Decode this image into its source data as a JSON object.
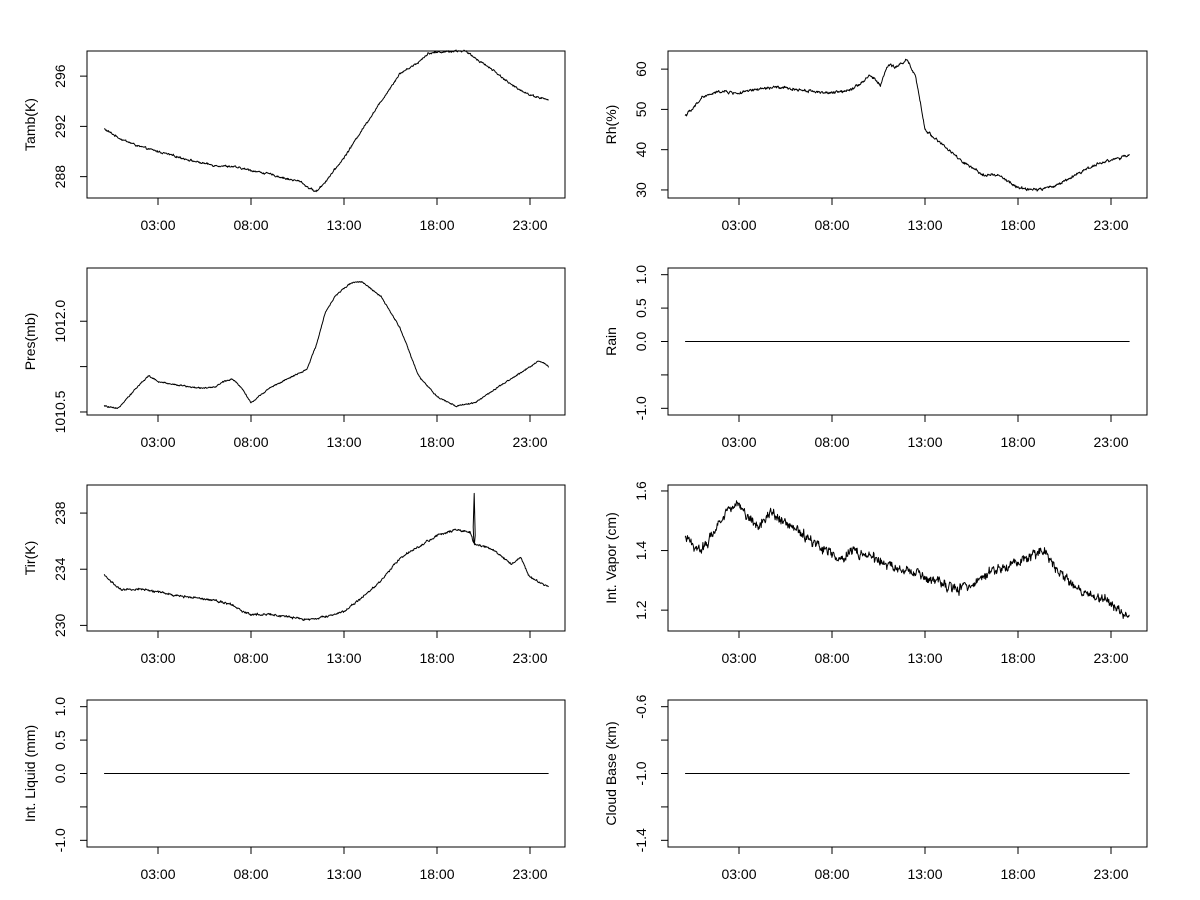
{
  "x_tick_labels": [
    "03:00",
    "08:00",
    "13:00",
    "18:00",
    "23:00"
  ],
  "chart_data": [
    {
      "type": "line",
      "ylabel": "Tamb(K)",
      "ylim": [
        286.3,
        298.0
      ],
      "yticks": [
        288,
        292,
        296
      ],
      "ytick_labels": [
        "288",
        "292",
        "296"
      ],
      "x_hours": [
        0.1,
        1,
        2,
        3,
        4,
        5,
        6,
        7,
        8,
        9,
        10,
        10.7,
        11,
        11.5,
        12,
        13,
        14,
        15,
        16,
        17,
        17.5,
        18,
        19,
        19.5,
        20,
        21,
        22,
        23,
        24
      ],
      "y": [
        291.8,
        291.0,
        290.4,
        290.0,
        289.6,
        289.2,
        288.9,
        288.8,
        288.5,
        288.2,
        287.8,
        287.6,
        287.2,
        286.8,
        287.6,
        289.5,
        291.8,
        294.0,
        296.2,
        297.1,
        297.8,
        297.9,
        298.0,
        298.0,
        297.5,
        296.5,
        295.3,
        294.5,
        294.1
      ],
      "noise": 0.12
    },
    {
      "type": "line",
      "ylabel": "Rh(%)",
      "ylim": [
        28.0,
        64.5
      ],
      "yticks": [
        30,
        40,
        50,
        60
      ],
      "ytick_labels": [
        "30",
        "40",
        "50",
        "60"
      ],
      "x_hours": [
        0.1,
        0.5,
        1,
        2,
        3,
        4,
        5,
        6,
        7,
        8,
        9,
        9.7,
        10,
        10.3,
        10.6,
        11,
        11.5,
        12,
        12.5,
        13,
        14,
        15,
        16,
        17,
        18,
        19,
        20,
        21,
        22,
        23,
        24
      ],
      "y": [
        48.5,
        50.0,
        53.0,
        54.5,
        54.0,
        55.0,
        55.5,
        55.0,
        54.5,
        54.0,
        55.0,
        57.0,
        58.5,
        57.5,
        56.0,
        61.0,
        60.5,
        62.5,
        58.0,
        45.0,
        41.0,
        37.0,
        34.0,
        33.5,
        30.5,
        30.0,
        31.0,
        33.5,
        36.0,
        37.5,
        38.5
      ],
      "noise": 0.55
    },
    {
      "type": "line",
      "ylabel": "Pres(mb)",
      "ylim": [
        1010.45,
        1012.88
      ],
      "yticks": [
        1010.5,
        1011.25,
        1012.0
      ],
      "ytick_labels": [
        "1010.5",
        "",
        "1012.0"
      ],
      "x_hours": [
        0.1,
        0.8,
        2,
        2.5,
        3,
        4,
        5,
        6,
        6.5,
        7,
        7.5,
        8,
        9,
        10,
        11,
        11.5,
        12,
        12.5,
        13,
        13.5,
        14,
        15,
        16,
        17,
        18,
        19,
        20,
        21,
        22,
        23,
        23.5,
        24
      ],
      "y": [
        1010.6,
        1010.55,
        1010.95,
        1011.1,
        1011.0,
        1010.95,
        1010.9,
        1010.9,
        1011.0,
        1011.05,
        1010.9,
        1010.65,
        1010.9,
        1011.05,
        1011.2,
        1011.6,
        1012.15,
        1012.4,
        1012.55,
        1012.65,
        1012.65,
        1012.4,
        1011.9,
        1011.1,
        1010.75,
        1010.6,
        1010.65,
        1010.85,
        1011.05,
        1011.25,
        1011.35,
        1011.25
      ],
      "noise": 0.018
    },
    {
      "type": "line",
      "ylabel": "Rain",
      "ylim": [
        -1.1,
        1.1
      ],
      "yticks": [
        -1.0,
        -0.5,
        0.0,
        0.5,
        1.0
      ],
      "ytick_labels": [
        "-1.0",
        "",
        "0.0",
        "0.5",
        "1.0"
      ],
      "x_hours": [
        0.1,
        24
      ],
      "y": [
        0.0,
        0.0
      ],
      "noise": 0
    },
    {
      "type": "line",
      "ylabel": "Tir(K)",
      "ylim": [
        229.6,
        240.0
      ],
      "yticks": [
        230,
        234,
        238
      ],
      "ytick_labels": [
        "230",
        "234",
        "238"
      ],
      "x_hours": [
        0.1,
        1,
        2,
        3,
        4,
        5,
        6,
        7,
        7.5,
        8,
        9,
        10,
        11,
        12,
        13,
        14,
        15,
        16,
        17,
        18,
        19,
        19.8,
        20,
        21,
        22,
        22.5,
        23,
        24
      ],
      "y": [
        233.6,
        232.5,
        232.6,
        232.4,
        232.1,
        232.0,
        231.8,
        231.5,
        231.0,
        230.8,
        230.8,
        230.6,
        230.4,
        230.6,
        231.0,
        232.0,
        233.2,
        234.8,
        235.6,
        236.4,
        236.8,
        236.6,
        235.8,
        235.4,
        234.4,
        234.8,
        233.4,
        232.8
      ],
      "noise": 0.12,
      "spike": {
        "x_hour": 20.0,
        "peak": 239.4,
        "base": 237.0
      }
    },
    {
      "type": "line",
      "ylabel": "Int. Vapor (cm)",
      "ylim": [
        1.13,
        1.62
      ],
      "yticks": [
        1.2,
        1.4,
        1.6
      ],
      "ytick_labels": [
        "1.2",
        "1.4",
        "1.6"
      ],
      "x_hours": [
        0.1,
        1,
        2,
        2.5,
        3,
        4,
        4.5,
        5,
        6,
        7,
        8,
        8.5,
        9,
        10,
        11,
        12,
        13,
        14,
        15,
        16,
        17,
        18,
        19,
        19.5,
        20,
        21,
        22,
        23,
        24
      ],
      "y": [
        1.44,
        1.4,
        1.5,
        1.55,
        1.55,
        1.48,
        1.52,
        1.52,
        1.47,
        1.43,
        1.39,
        1.37,
        1.4,
        1.38,
        1.35,
        1.33,
        1.31,
        1.28,
        1.27,
        1.31,
        1.34,
        1.36,
        1.39,
        1.4,
        1.34,
        1.28,
        1.25,
        1.22,
        1.18
      ],
      "noise": 0.025
    },
    {
      "type": "line",
      "ylabel": "Int. Liquid (mm)",
      "ylim": [
        -1.1,
        1.1
      ],
      "yticks": [
        -1.0,
        -0.5,
        0.0,
        0.5,
        1.0
      ],
      "ytick_labels": [
        "-1.0",
        "",
        "0.0",
        "0.5",
        "1.0"
      ],
      "x_hours": [
        0.1,
        24
      ],
      "y": [
        0.0,
        0.0
      ],
      "noise": 0
    },
    {
      "type": "line",
      "ylabel": "Cloud Base (km)",
      "ylim": [
        -1.44,
        -0.56
      ],
      "yticks": [
        -1.4,
        -1.2,
        -1.0,
        -0.8,
        -0.6
      ],
      "ytick_labels": [
        "-1.4",
        "",
        "-1.0",
        "",
        "-0.6"
      ],
      "x_hours": [
        0.1,
        24
      ],
      "y": [
        -1.0,
        -1.0
      ],
      "noise": 0
    }
  ]
}
